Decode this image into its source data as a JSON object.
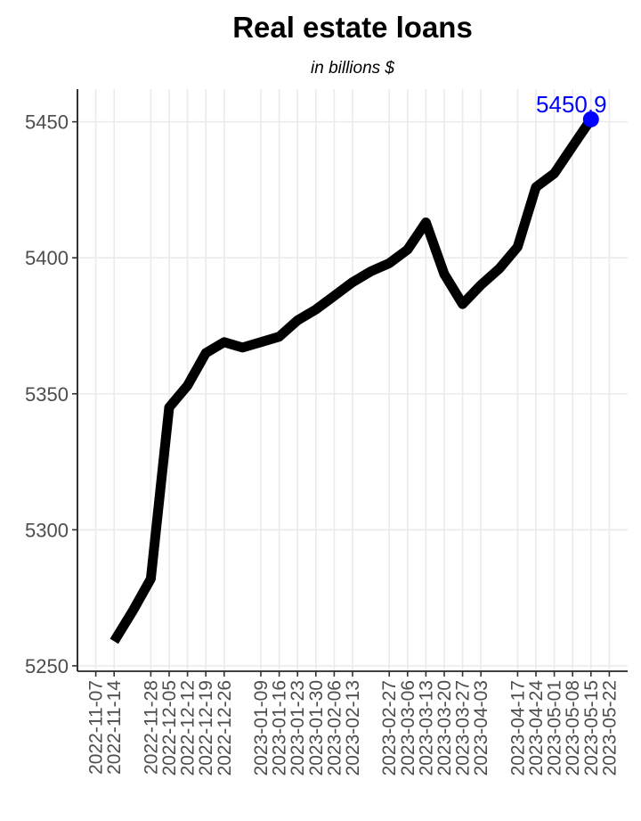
{
  "chart_data": {
    "type": "line",
    "title": "Real estate loans",
    "subtitle": "in billions $",
    "ylim": [
      5248,
      5462
    ],
    "y_ticks": [
      5250,
      5300,
      5350,
      5400,
      5450
    ],
    "x_tick_labels": [
      "2022-11-07",
      "2022-11-14",
      "2022-11-28",
      "2022-12-05",
      "2022-12-12",
      "2022-12-19",
      "2022-12-26",
      "2023-01-09",
      "2023-01-16",
      "2023-01-23",
      "2023-01-30",
      "2023-02-06",
      "2023-02-13",
      "2023-02-27",
      "2023-03-06",
      "2023-03-13",
      "2023-03-20",
      "2023-03-27",
      "2023-04-03",
      "2023-04-17",
      "2023-04-24",
      "2023-05-01",
      "2023-05-08",
      "2023-05-15",
      "2023-05-22"
    ],
    "x": [
      "2022-11-14",
      "2022-11-21",
      "2022-11-28",
      "2022-12-05",
      "2022-12-12",
      "2022-12-19",
      "2022-12-26",
      "2023-01-02",
      "2023-01-09",
      "2023-01-16",
      "2023-01-23",
      "2023-01-30",
      "2023-02-06",
      "2023-02-13",
      "2023-02-20",
      "2023-02-27",
      "2023-03-06",
      "2023-03-13",
      "2023-03-20",
      "2023-03-27",
      "2023-04-03",
      "2023-04-10",
      "2023-04-17",
      "2023-04-24",
      "2023-05-01",
      "2023-05-08",
      "2023-05-15"
    ],
    "values": [
      5259,
      5270,
      5282,
      5345,
      5353,
      5365,
      5369,
      5367,
      5369,
      5371,
      5377,
      5381,
      5386,
      5391,
      5395,
      5398,
      5403,
      5413,
      5394,
      5383,
      5390,
      5396,
      5404,
      5426,
      5431,
      5441,
      5450.9
    ],
    "highlight": {
      "x": "2023-05-15",
      "value": 5450.9,
      "label": "5450.9",
      "color": "#0000ff"
    },
    "line_color": "#000000",
    "grid": true
  }
}
